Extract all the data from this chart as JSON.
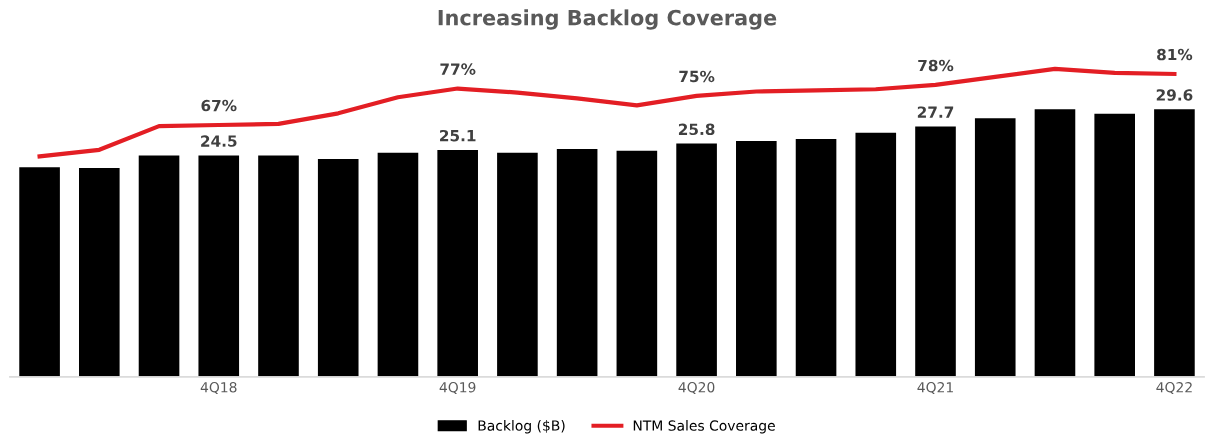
{
  "chart_data": {
    "type": "bar",
    "title": "Increasing Backlog Coverage",
    "categories": [
      null,
      null,
      null,
      "4Q18",
      null,
      null,
      null,
      "4Q19",
      null,
      null,
      null,
      "4Q20",
      null,
      null,
      null,
      "4Q21",
      null,
      null,
      null,
      "4Q22"
    ],
    "series": [
      {
        "name": "Backlog ($B)",
        "color": "#000000",
        "values": [
          23.2,
          23.1,
          24.5,
          24.5,
          24.5,
          24.1,
          24.8,
          25.1,
          24.8,
          25.2,
          25.0,
          25.8,
          26.1,
          26.3,
          27.0,
          27.7,
          28.6,
          29.6,
          29.1,
          29.6
        ],
        "value_labels": [
          null,
          null,
          null,
          "24.5",
          null,
          null,
          null,
          "25.1",
          null,
          null,
          null,
          "25.8",
          null,
          null,
          null,
          "27.7",
          null,
          null,
          null,
          "29.6"
        ]
      },
      {
        "name": "NTM Sales Coverage",
        "type": "line",
        "axis": "y2",
        "color": "#e31e24",
        "values": [
          58.4,
          60.2,
          66.7,
          67,
          67.3,
          70.2,
          74.6,
          77,
          75.9,
          74.3,
          72.4,
          75,
          76.2,
          76.5,
          76.8,
          78,
          80.2,
          82.4,
          81.3,
          81
        ],
        "value_labels": [
          null,
          null,
          null,
          "67%",
          null,
          null,
          null,
          "77%",
          null,
          null,
          null,
          "75%",
          null,
          null,
          null,
          "78%",
          null,
          null,
          null,
          "81%"
        ]
      }
    ],
    "tick_labels": "x",
    "grid": false,
    "legend": "bottom",
    "marker": "none",
    "line_style": "solid"
  }
}
